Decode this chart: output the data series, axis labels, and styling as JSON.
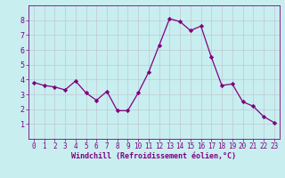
{
  "x": [
    0,
    1,
    2,
    3,
    4,
    5,
    6,
    7,
    8,
    9,
    10,
    11,
    12,
    13,
    14,
    15,
    16,
    17,
    18,
    19,
    20,
    21,
    22,
    23
  ],
  "y": [
    3.8,
    3.6,
    3.5,
    3.3,
    3.9,
    3.1,
    2.6,
    3.2,
    1.9,
    1.9,
    3.1,
    4.5,
    6.3,
    8.1,
    7.9,
    7.3,
    7.6,
    5.5,
    3.6,
    3.7,
    2.5,
    2.2,
    1.5,
    1.1
  ],
  "line_color": "#800080",
  "marker": "D",
  "marker_size": 2.2,
  "background_color": "#c8eef0",
  "grid_color": "#c0c8d0",
  "xlabel": "Windchill (Refroidissement éolien,°C)",
  "xlabel_color": "#800080",
  "tick_color": "#800080",
  "ylim": [
    0,
    9
  ],
  "xlim": [
    -0.5,
    23.5
  ],
  "yticks": [
    1,
    2,
    3,
    4,
    5,
    6,
    7,
    8
  ],
  "xticks": [
    0,
    1,
    2,
    3,
    4,
    5,
    6,
    7,
    8,
    9,
    10,
    11,
    12,
    13,
    14,
    15,
    16,
    17,
    18,
    19,
    20,
    21,
    22,
    23
  ],
  "ylabel_fontsize": 6,
  "xlabel_fontsize": 6,
  "tick_fontsize": 5.5
}
